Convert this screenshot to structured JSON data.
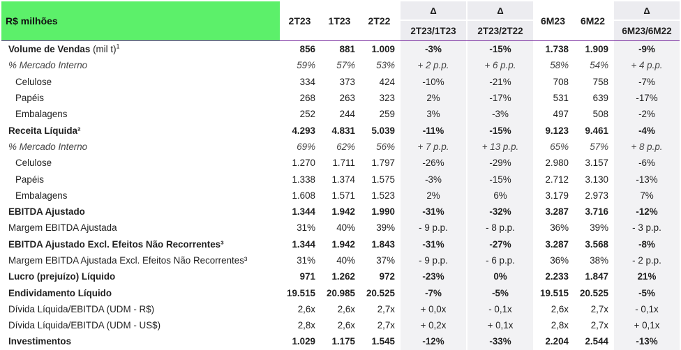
{
  "header": {
    "title": "R$ milhões",
    "cols": [
      "2T23",
      "1T23",
      "2T22"
    ],
    "delta_symbol": "Δ",
    "delta1": "2T23/1T23",
    "delta2": "2T23/2T22",
    "cols2": [
      "6M23",
      "6M22"
    ],
    "delta3": "6M23/6M22"
  },
  "rows": [
    {
      "label": "Volume de Vendas",
      "unit": " (mil t)",
      "sup": "1",
      "values": [
        "856",
        "881",
        "1.009",
        "-3%",
        "-15%",
        "1.738",
        "1.909",
        "-9%"
      ]
    },
    {
      "label": "% Mercado Interno",
      "values": [
        "59%",
        "57%",
        "53%",
        "+ 2 p.p.",
        "+ 6 p.p.",
        "58%",
        "54%",
        "+ 4 p.p."
      ]
    },
    {
      "label": "Celulose",
      "values": [
        "334",
        "373",
        "424",
        "-10%",
        "-21%",
        "708",
        "758",
        "-7%"
      ]
    },
    {
      "label": "Papéis",
      "values": [
        "268",
        "263",
        "323",
        "2%",
        "-17%",
        "531",
        "639",
        "-17%"
      ]
    },
    {
      "label": "Embalagens",
      "values": [
        "252",
        "244",
        "259",
        "3%",
        "-3%",
        "497",
        "508",
        "-2%"
      ]
    },
    {
      "label": "Receita Líquida²",
      "values": [
        "4.293",
        "4.831",
        "5.039",
        "-11%",
        "-15%",
        "9.123",
        "9.461",
        "-4%"
      ]
    },
    {
      "label": "% Mercado Interno",
      "values": [
        "69%",
        "62%",
        "56%",
        "+ 7 p.p.",
        "+ 13 p.p.",
        "65%",
        "57%",
        "+ 8 p.p."
      ]
    },
    {
      "label": "Celulose",
      "values": [
        "1.270",
        "1.711",
        "1.797",
        "-26%",
        "-29%",
        "2.980",
        "3.157",
        "-6%"
      ]
    },
    {
      "label": "Papéis",
      "values": [
        "1.338",
        "1.374",
        "1.575",
        "-3%",
        "-15%",
        "2.712",
        "3.130",
        "-13%"
      ]
    },
    {
      "label": "Embalagens",
      "values": [
        "1.608",
        "1.571",
        "1.523",
        "2%",
        "6%",
        "3.179",
        "2.973",
        "7%"
      ]
    },
    {
      "label": "EBITDA Ajustado",
      "values": [
        "1.344",
        "1.942",
        "1.990",
        "-31%",
        "-32%",
        "3.287",
        "3.716",
        "-12%"
      ]
    },
    {
      "label": "Margem EBITDA Ajustada",
      "values": [
        "31%",
        "40%",
        "39%",
        "- 9 p.p.",
        "- 8 p.p.",
        "36%",
        "39%",
        "- 3 p.p."
      ]
    },
    {
      "label": "EBITDA Ajustado Excl. Efeitos Não Recorrentes³",
      "values": [
        "1.344",
        "1.942",
        "1.843",
        "-31%",
        "-27%",
        "3.287",
        "3.568",
        "-8%"
      ]
    },
    {
      "label": "Margem EBITDA Ajustada Excl. Efeitos Não Recorrentes³",
      "values": [
        "31%",
        "40%",
        "37%",
        "- 9 p.p.",
        "- 6 p.p.",
        "36%",
        "38%",
        "- 2 p.p."
      ]
    },
    {
      "label": "Lucro (prejuízo) Líquido",
      "values": [
        "971",
        "1.262",
        "972",
        "-23%",
        "0%",
        "2.233",
        "1.847",
        "21%"
      ]
    },
    {
      "label": "Endividamento Líquido",
      "values": [
        "19.515",
        "20.985",
        "20.525",
        "-7%",
        "-5%",
        "19.515",
        "20.525",
        "-5%"
      ]
    },
    {
      "label": "Dívida Líquida/EBITDA (UDM - R$)",
      "values": [
        "2,6x",
        "2,6x",
        "2,7x",
        "+ 0,0x",
        "- 0,1x",
        "2,6x",
        "2,7x",
        "- 0,1x"
      ]
    },
    {
      "label": "Dívida Líquida/EBITDA (UDM - US$)",
      "values": [
        "2,8x",
        "2,6x",
        "2,7x",
        "+ 0,2x",
        "+ 0,1x",
        "2,8x",
        "2,7x",
        "+ 0,1x"
      ]
    },
    {
      "label": "Investimentos",
      "values": [
        "1.029",
        "1.175",
        "1.545",
        "-12%",
        "-33%",
        "2.204",
        "2.544",
        "-13%"
      ]
    }
  ],
  "colors": {
    "header_green": "#5cf06a",
    "delta_bg": "#ececf0",
    "rule": "#7a2ea0"
  }
}
